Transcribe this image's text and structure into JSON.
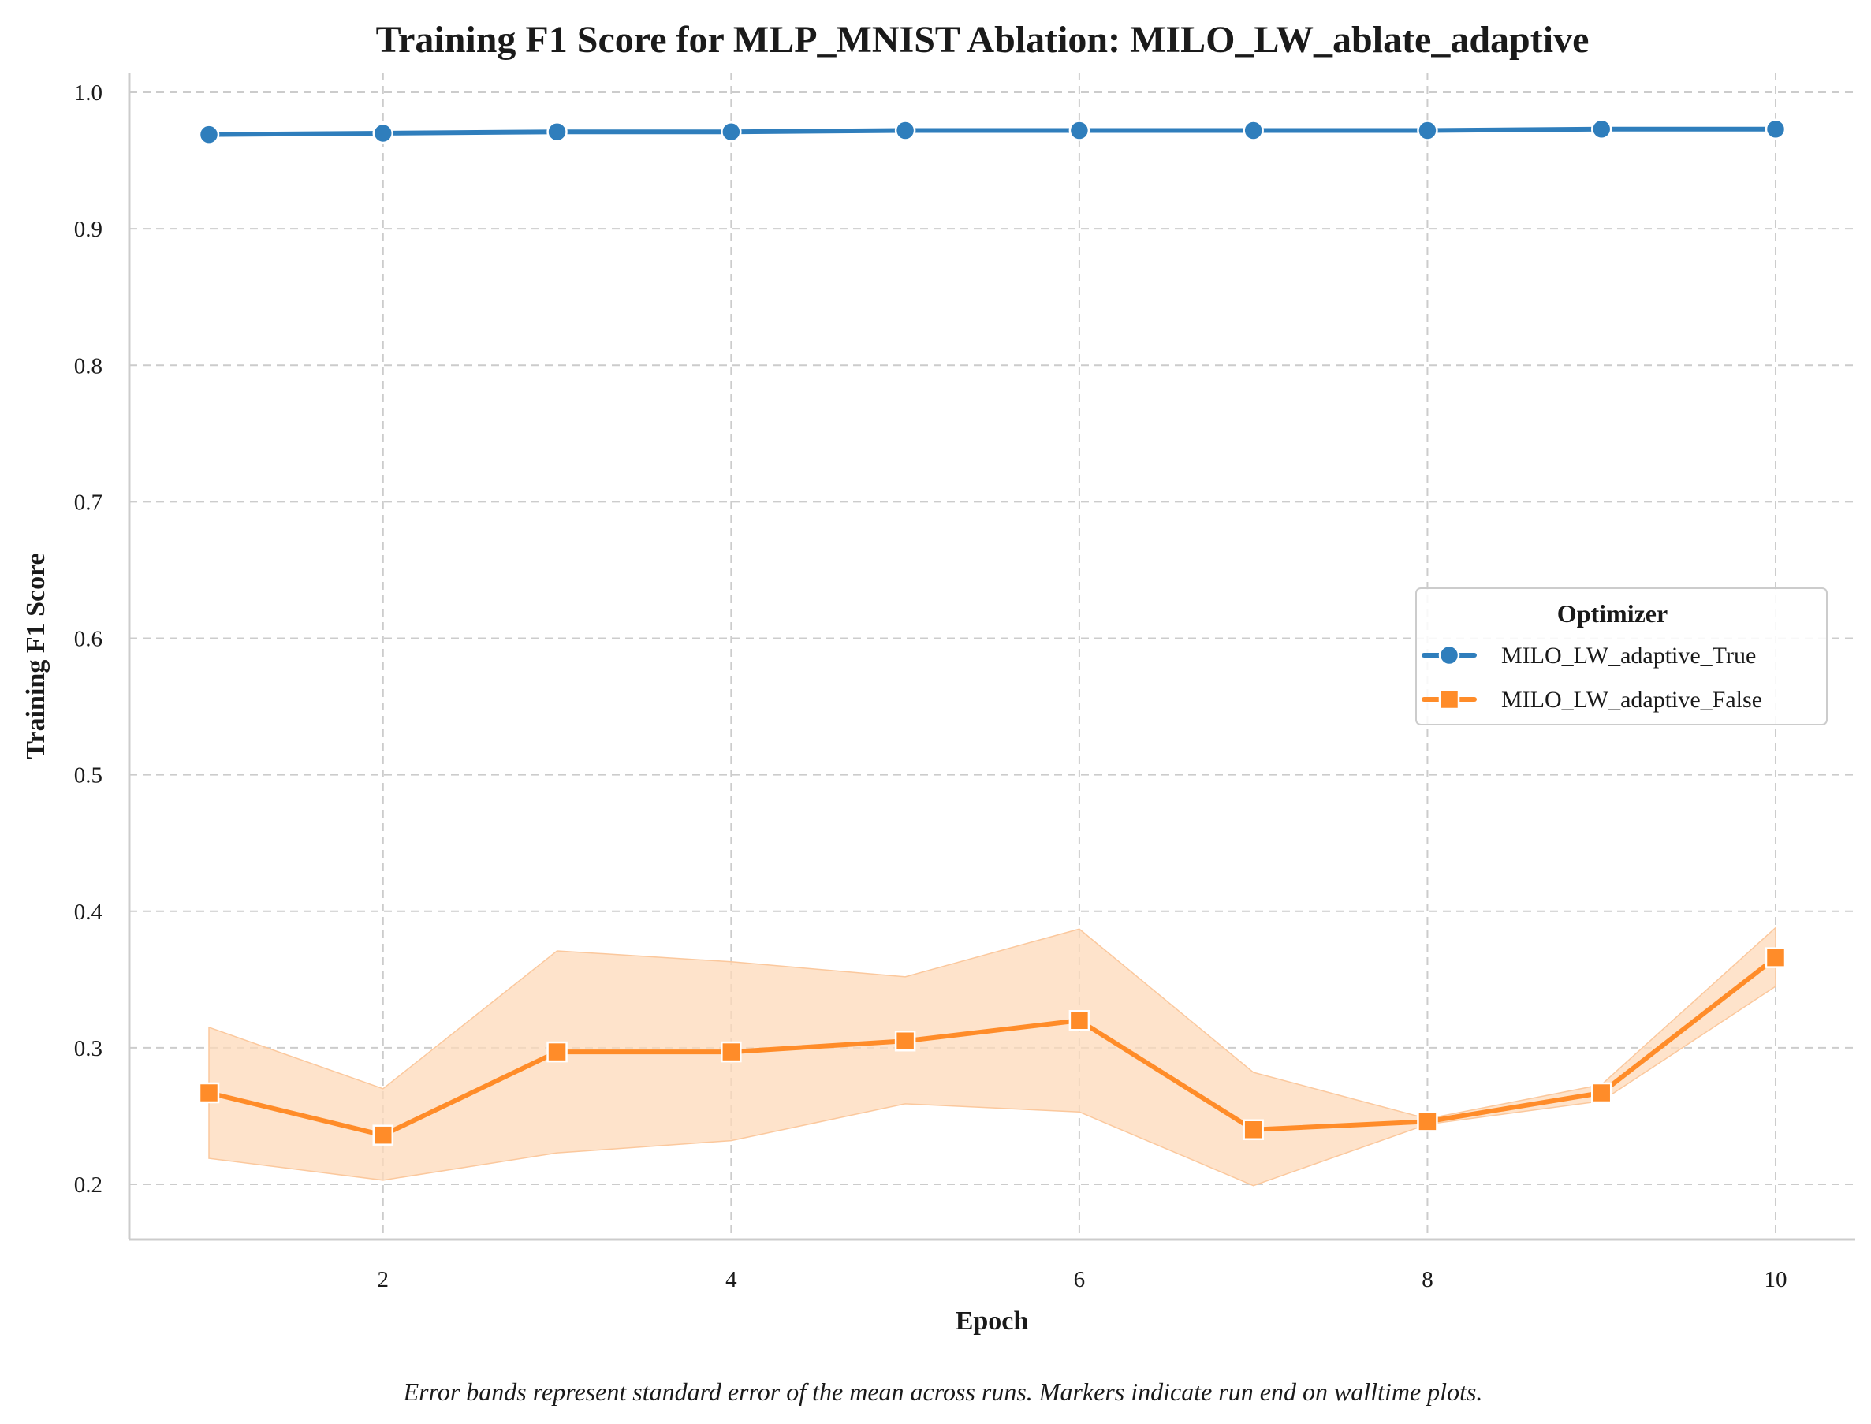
{
  "chart_data": {
    "type": "line",
    "title": "Training F1 Score for MLP_MNIST Ablation: MILO_LW_ablate_adaptive",
    "xlabel": "Epoch",
    "ylabel": "Training F1 Score",
    "x": [
      1,
      2,
      3,
      4,
      5,
      6,
      7,
      8,
      9,
      10
    ],
    "xlim": [
      0.5,
      10.45
    ],
    "ylim": [
      0.16,
      1.015
    ],
    "xticks": [
      2,
      4,
      6,
      8,
      10
    ],
    "xtick_labels": [
      "2",
      "4",
      "6",
      "8",
      "10"
    ],
    "yticks": [
      0.2,
      0.3,
      0.4,
      0.5,
      0.6,
      0.7,
      0.8,
      0.9,
      1.0
    ],
    "ytick_labels": [
      "0.2",
      "0.3",
      "0.4",
      "0.5",
      "0.6",
      "0.7",
      "0.8",
      "0.9",
      "1.0"
    ],
    "grid": true,
    "legend": {
      "title": "Optimizer",
      "position": "center-right"
    },
    "series": [
      {
        "name": "MILO_LW_adaptive_True",
        "color": "#2f7ebc",
        "marker": "circle",
        "values": [
          0.969,
          0.97,
          0.971,
          0.971,
          0.972,
          0.972,
          0.972,
          0.972,
          0.973,
          0.973
        ],
        "lower": [
          0.968,
          0.969,
          0.97,
          0.97,
          0.971,
          0.971,
          0.971,
          0.971,
          0.972,
          0.972
        ],
        "upper": [
          0.97,
          0.971,
          0.972,
          0.972,
          0.973,
          0.973,
          0.973,
          0.973,
          0.974,
          0.974
        ]
      },
      {
        "name": "MILO_LW_adaptive_False",
        "color": "#ff8c29",
        "band_color": "#fdd9b9",
        "marker": "square",
        "values": [
          0.267,
          0.236,
          0.297,
          0.297,
          0.305,
          0.32,
          0.24,
          0.246,
          0.267,
          0.366
        ],
        "lower": [
          0.219,
          0.203,
          0.223,
          0.232,
          0.259,
          0.253,
          0.199,
          0.244,
          0.261,
          0.345
        ],
        "upper": [
          0.315,
          0.27,
          0.371,
          0.363,
          0.352,
          0.387,
          0.282,
          0.248,
          0.273,
          0.388
        ]
      }
    ],
    "caption": "Error bands represent standard error of the mean across runs. Markers indicate run end on walltime plots."
  }
}
